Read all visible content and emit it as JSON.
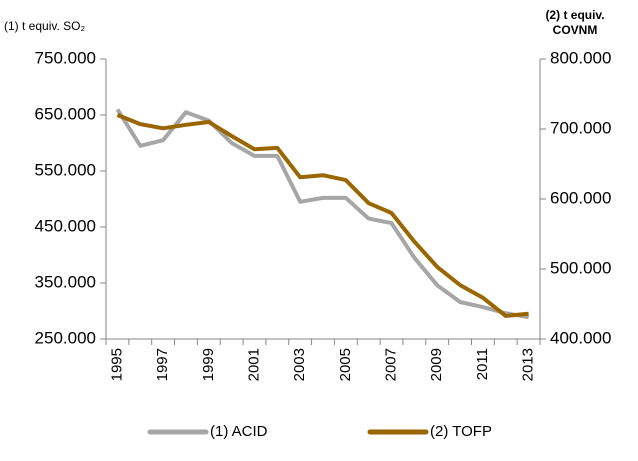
{
  "chart_data": {
    "type": "line",
    "y_label": "(1) t equiv. SO₂",
    "y2_label": [
      "(2) t equiv.",
      "COVNM"
    ],
    "categories": [
      "1995",
      null,
      "1997",
      null,
      "1999",
      null,
      "2001",
      null,
      "2003",
      null,
      "2005",
      null,
      "2007",
      null,
      "2009",
      null,
      "2011",
      null,
      "2013"
    ],
    "series": [
      {
        "name": "(1) ACID",
        "color": "#a6a6a6",
        "axis": "y",
        "values": [
          660000,
          595000,
          605000,
          655000,
          640000,
          600000,
          577000,
          577000,
          495000,
          502000,
          502000,
          465000,
          457000,
          395000,
          346000,
          316000,
          307000,
          296000,
          289000
        ]
      },
      {
        "name": "(2) TOFP",
        "color": "#996600",
        "axis": "y2",
        "values": [
          720000,
          707000,
          701000,
          706000,
          710000,
          690000,
          671000,
          673000,
          631000,
          634000,
          627000,
          594000,
          580000,
          539000,
          503000,
          477000,
          459000,
          433000,
          436000
        ]
      }
    ],
    "ylim": [
      250000,
      750000
    ],
    "yticks": [
      {
        "value": 250000,
        "label": "250.000"
      },
      {
        "value": 350000,
        "label": "350.000"
      },
      {
        "value": 450000,
        "label": "450.000"
      },
      {
        "value": 550000,
        "label": "550.000"
      },
      {
        "value": 650000,
        "label": "650.000"
      },
      {
        "value": 750000,
        "label": "750.000"
      }
    ],
    "y2lim": [
      400000,
      800000
    ],
    "y2ticks": [
      {
        "value": 400000,
        "label": "400.000"
      },
      {
        "value": 500000,
        "label": "500.000"
      },
      {
        "value": 600000,
        "label": "600.000"
      },
      {
        "value": 700000,
        "label": "700.000"
      },
      {
        "value": 800000,
        "label": "800.000"
      }
    ],
    "legend": "bottom"
  }
}
